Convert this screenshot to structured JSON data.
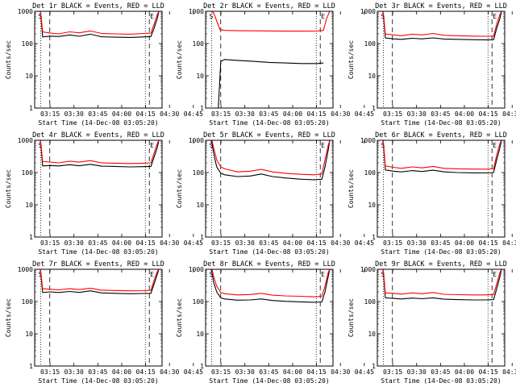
{
  "figure": {
    "xlabel": "Start Time (14-Dec-08 03:05:20)",
    "ylabel": "Counts/sec"
  },
  "x_ticks": [
    "03:15",
    "03:30",
    "03:45",
    "04:00",
    "04:15",
    "04:30",
    "04:45"
  ],
  "y_ticks": [
    "1",
    "10",
    "100",
    "1000"
  ],
  "chart_data": [
    {
      "type": "line",
      "title": "Det 1r BLACK = Events, RED = LLD",
      "series": [
        {
          "name": "BLACK = Events",
          "color": "#000000",
          "x": [
            3.5,
            4.0,
            5.0,
            10.0,
            15.0,
            22.0,
            28.0,
            35.0,
            42.0,
            50.0,
            60.0,
            68.0,
            73.0,
            75.0,
            77.0,
            78.0
          ],
          "y": [
            1100,
            600,
            160,
            170,
            165,
            185,
            168,
            195,
            162,
            158,
            155,
            160,
            165,
            300,
            600,
            1100
          ]
        },
        {
          "name": "RED = LLD",
          "color": "#ff0000",
          "x": [
            3.5,
            4.0,
            5.0,
            10.0,
            15.0,
            22.0,
            28.0,
            35.0,
            42.0,
            50.0,
            60.0,
            68.0,
            73.0,
            75.0,
            77.0,
            78.0
          ],
          "y": [
            1200,
            700,
            230,
            210,
            200,
            230,
            215,
            245,
            205,
            200,
            195,
            205,
            210,
            400,
            800,
            1200
          ]
        }
      ],
      "markers": {
        "S": 3.8,
        "E": 76.0,
        "dotted": [
          3.8,
          69.5
        ],
        "dashed": [
          9.5,
          72.0
        ]
      },
      "ylim": [
        1,
        1000
      ],
      "xlim": [
        0,
        80
      ],
      "yscale": "log"
    },
    {
      "type": "line",
      "title": "Det 2r BLACK = Events, RED = LLD",
      "series": [
        {
          "name": "BLACK = Events",
          "color": "#000000",
          "x": [
            8.0,
            9.5,
            12.0,
            20.0,
            30.0,
            40.0,
            50.0,
            60.0,
            70.0,
            74.0
          ],
          "y": [
            0,
            28,
            32,
            30,
            28,
            26,
            25,
            24,
            24,
            25
          ]
        },
        {
          "name": "RED = LLD",
          "color": "#ff0000",
          "x": [
            3.5,
            5.0,
            7.0,
            9.0,
            12.0,
            20.0,
            30.0,
            40.0,
            50.0,
            60.0,
            70.0,
            74.0,
            76.0,
            78.0
          ],
          "y": [
            1200,
            900,
            500,
            270,
            255,
            250,
            248,
            245,
            243,
            242,
            245,
            255,
            600,
            1200
          ]
        }
      ],
      "markers": {
        "S": 3.8,
        "E": 76.0,
        "dotted": [
          3.8,
          69.5
        ],
        "dashed": [
          9.5,
          72.0
        ]
      },
      "ylim": [
        1,
        1000
      ],
      "xlim": [
        0,
        80
      ],
      "yscale": "log"
    },
    {
      "type": "line",
      "title": "Det 3r BLACK = Events, RED = LLD",
      "series": [
        {
          "name": "BLACK = Events",
          "color": "#000000",
          "x": [
            3.5,
            4.0,
            5.0,
            10.0,
            15.0,
            22.0,
            28.0,
            35.0,
            42.0,
            50.0,
            60.0,
            68.0,
            73.0,
            75.0,
            77.0,
            78.0
          ],
          "y": [
            1100,
            600,
            150,
            140,
            135,
            145,
            140,
            150,
            138,
            135,
            132,
            130,
            132,
            300,
            600,
            1100
          ]
        },
        {
          "name": "RED = LLD",
          "color": "#ff0000",
          "x": [
            3.5,
            4.0,
            5.0,
            10.0,
            15.0,
            22.0,
            28.0,
            35.0,
            42.0,
            50.0,
            60.0,
            68.0,
            73.0,
            75.0,
            77.0,
            78.0
          ],
          "y": [
            1200,
            700,
            200,
            185,
            175,
            195,
            185,
            205,
            180,
            175,
            170,
            168,
            170,
            400,
            800,
            1200
          ]
        }
      ],
      "markers": {
        "S": 3.8,
        "E": 76.0,
        "dotted": [
          3.8,
          69.5
        ],
        "dashed": [
          9.5,
          72.0
        ]
      },
      "ylim": [
        1,
        1000
      ],
      "xlim": [
        0,
        80
      ],
      "yscale": "log"
    },
    {
      "type": "line",
      "title": "Det 4r BLACK = Events, RED = LLD",
      "series": [
        {
          "name": "BLACK = Events",
          "color": "#000000",
          "x": [
            3.5,
            4.0,
            5.0,
            10.0,
            15.0,
            22.0,
            28.0,
            35.0,
            42.0,
            50.0,
            60.0,
            68.0,
            73.0,
            75.0,
            77.0,
            78.0
          ],
          "y": [
            1100,
            600,
            160,
            165,
            160,
            175,
            162,
            180,
            158,
            155,
            150,
            152,
            155,
            300,
            600,
            1100
          ]
        },
        {
          "name": "RED = LLD",
          "color": "#ff0000",
          "x": [
            3.5,
            4.0,
            5.0,
            10.0,
            15.0,
            22.0,
            28.0,
            35.0,
            42.0,
            50.0,
            60.0,
            68.0,
            73.0,
            75.0,
            77.0,
            78.0
          ],
          "y": [
            1200,
            700,
            220,
            210,
            200,
            225,
            210,
            235,
            200,
            195,
            190,
            195,
            200,
            400,
            800,
            1200
          ]
        }
      ],
      "markers": {
        "S": 3.8,
        "E": 76.0,
        "dotted": [
          3.8,
          69.5
        ],
        "dashed": [
          9.5,
          72.0
        ]
      },
      "ylim": [
        1,
        1000
      ],
      "xlim": [
        0,
        80
      ],
      "yscale": "log"
    },
    {
      "type": "line",
      "title": "Det 5r BLACK = Events, RED = LLD",
      "series": [
        {
          "name": "BLACK = Events",
          "color": "#000000",
          "x": [
            3.5,
            4.0,
            5.0,
            7.0,
            9.5,
            12.0,
            20.0,
            28.0,
            35.0,
            42.0,
            50.0,
            60.0,
            68.0,
            73.0,
            75.0,
            77.0,
            78.0
          ],
          "y": [
            1100,
            800,
            400,
            150,
            95,
            85,
            75,
            78,
            90,
            75,
            68,
            62,
            60,
            62,
            150,
            500,
            1100
          ]
        },
        {
          "name": "RED = LLD",
          "color": "#ff0000",
          "x": [
            3.5,
            4.0,
            5.0,
            7.0,
            9.5,
            12.0,
            20.0,
            28.0,
            35.0,
            42.0,
            50.0,
            60.0,
            68.0,
            73.0,
            75.0,
            77.0,
            78.0
          ],
          "y": [
            1200,
            1000,
            600,
            250,
            150,
            130,
            105,
            110,
            125,
            105,
            95,
            88,
            85,
            90,
            250,
            700,
            1200
          ]
        }
      ],
      "markers": {
        "S": 3.8,
        "E": 76.0,
        "dotted": [
          3.8,
          69.5
        ],
        "dashed": [
          9.5,
          72.0
        ]
      },
      "ylim": [
        1,
        1000
      ],
      "xlim": [
        0,
        80
      ],
      "yscale": "log"
    },
    {
      "type": "line",
      "title": "Det 6r BLACK = Events, RED = LLD",
      "series": [
        {
          "name": "BLACK = Events",
          "color": "#000000",
          "x": [
            3.5,
            4.0,
            5.0,
            10.0,
            15.0,
            22.0,
            28.0,
            35.0,
            42.0,
            50.0,
            60.0,
            68.0,
            73.0,
            75.0,
            77.0,
            78.0
          ],
          "y": [
            1100,
            600,
            120,
            110,
            105,
            115,
            108,
            118,
            105,
            100,
            98,
            97,
            100,
            250,
            600,
            1100
          ]
        },
        {
          "name": "RED = LLD",
          "color": "#ff0000",
          "x": [
            3.5,
            4.0,
            5.0,
            10.0,
            15.0,
            22.0,
            28.0,
            35.0,
            42.0,
            50.0,
            60.0,
            68.0,
            73.0,
            75.0,
            77.0,
            78.0
          ],
          "y": [
            1200,
            700,
            160,
            145,
            135,
            150,
            140,
            155,
            135,
            130,
            128,
            127,
            130,
            350,
            800,
            1200
          ]
        }
      ],
      "markers": {
        "S": 3.8,
        "E": 76.0,
        "dotted": [
          3.8,
          69.5
        ],
        "dashed": [
          9.5,
          72.0
        ]
      },
      "ylim": [
        1,
        1000
      ],
      "xlim": [
        0,
        80
      ],
      "yscale": "log"
    },
    {
      "type": "line",
      "title": "Det 7r BLACK = Events, RED = LLD",
      "series": [
        {
          "name": "BLACK = Events",
          "color": "#000000",
          "x": [
            3.5,
            4.0,
            5.0,
            10.0,
            15.0,
            22.0,
            28.0,
            35.0,
            42.0,
            50.0,
            60.0,
            68.0,
            73.0,
            75.0,
            77.0,
            78.0
          ],
          "y": [
            1100,
            600,
            190,
            200,
            190,
            205,
            192,
            215,
            185,
            180,
            175,
            178,
            180,
            350,
            700,
            1100
          ]
        },
        {
          "name": "RED = LLD",
          "color": "#ff0000",
          "x": [
            3.5,
            4.0,
            5.0,
            10.0,
            15.0,
            22.0,
            28.0,
            35.0,
            42.0,
            50.0,
            60.0,
            68.0,
            73.0,
            75.0,
            77.0,
            78.0
          ],
          "y": [
            1200,
            700,
            250,
            240,
            230,
            250,
            235,
            260,
            225,
            220,
            215,
            218,
            222,
            450,
            850,
            1200
          ]
        }
      ],
      "markers": {
        "S": 3.8,
        "E": 76.0,
        "dotted": [
          3.8,
          69.5
        ],
        "dashed": [
          9.5,
          72.0
        ]
      },
      "ylim": [
        1,
        1000
      ],
      "xlim": [
        0,
        80
      ],
      "yscale": "log"
    },
    {
      "type": "line",
      "title": "Det 8r BLACK = Events, RED = LLD",
      "series": [
        {
          "name": "BLACK = Events",
          "color": "#000000",
          "x": [
            3.5,
            4.0,
            5.0,
            7.0,
            9.5,
            12.0,
            20.0,
            28.0,
            35.0,
            42.0,
            50.0,
            60.0,
            68.0,
            73.0,
            75.0,
            77.0,
            78.0
          ],
          "y": [
            1100,
            800,
            400,
            200,
            130,
            120,
            110,
            112,
            120,
            108,
            102,
            98,
            95,
            97,
            200,
            600,
            1100
          ]
        },
        {
          "name": "RED = LLD",
          "color": "#ff0000",
          "x": [
            3.5,
            4.0,
            5.0,
            7.0,
            9.5,
            12.0,
            20.0,
            28.0,
            35.0,
            42.0,
            50.0,
            60.0,
            68.0,
            73.0,
            75.0,
            77.0,
            78.0
          ],
          "y": [
            1200,
            1000,
            600,
            300,
            190,
            175,
            160,
            165,
            180,
            158,
            150,
            145,
            140,
            145,
            300,
            800,
            1200
          ]
        }
      ],
      "markers": {
        "S": 3.8,
        "E": 76.0,
        "dotted": [
          3.8,
          69.5
        ],
        "dashed": [
          9.5,
          72.0
        ]
      },
      "ylim": [
        1,
        1000
      ],
      "xlim": [
        0,
        80
      ],
      "yscale": "log"
    },
    {
      "type": "line",
      "title": "Det 9r BLACK = Events, RED = LLD",
      "series": [
        {
          "name": "BLACK = Events",
          "color": "#000000",
          "x": [
            3.5,
            4.0,
            5.0,
            10.0,
            15.0,
            22.0,
            28.0,
            35.0,
            42.0,
            50.0,
            60.0,
            68.0,
            73.0,
            75.0,
            77.0,
            78.0
          ],
          "y": [
            1100,
            600,
            130,
            125,
            120,
            128,
            122,
            130,
            118,
            115,
            112,
            112,
            115,
            250,
            600,
            1100
          ]
        },
        {
          "name": "RED = LLD",
          "color": "#ff0000",
          "x": [
            3.5,
            4.0,
            5.0,
            10.0,
            15.0,
            22.0,
            28.0,
            35.0,
            42.0,
            50.0,
            60.0,
            68.0,
            73.0,
            75.0,
            77.0,
            78.0
          ],
          "y": [
            1200,
            700,
            185,
            180,
            170,
            185,
            175,
            190,
            168,
            163,
            160,
            160,
            165,
            350,
            800,
            1200
          ]
        }
      ],
      "markers": {
        "S": 3.8,
        "E": 76.0,
        "dotted": [
          3.8,
          69.5
        ],
        "dashed": [
          9.5,
          72.0
        ]
      },
      "ylim": [
        1,
        1000
      ],
      "xlim": [
        0,
        80
      ],
      "yscale": "log"
    }
  ]
}
